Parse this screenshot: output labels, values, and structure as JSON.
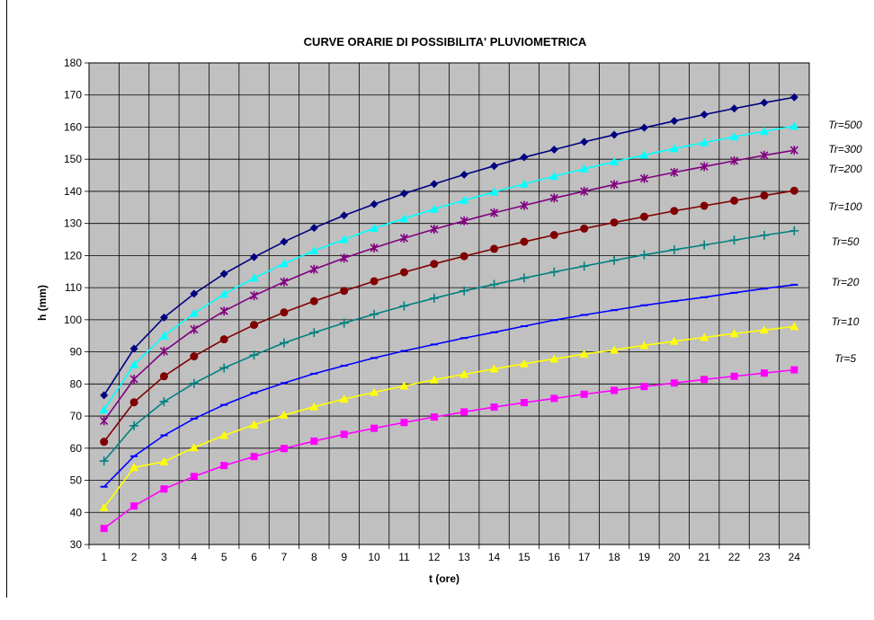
{
  "chart_data": {
    "type": "line",
    "title": "CURVE ORARIE DI POSSIBILITA' PLUVIOMETRICA",
    "xlabel": "t (ore)",
    "ylabel": "h (mm)",
    "ylim": [
      30,
      180
    ],
    "yticks": [
      "30",
      "40",
      "50",
      "60",
      "70",
      "80",
      "90",
      "100",
      "110",
      "120",
      "130",
      "140",
      "150",
      "160",
      "170",
      "180"
    ],
    "x": [
      "1",
      "2",
      "3",
      "4",
      "5",
      "6",
      "7",
      "8",
      "9",
      "10",
      "11",
      "12",
      "13",
      "14",
      "15",
      "16",
      "17",
      "18",
      "19",
      "20",
      "21",
      "22",
      "23",
      "24"
    ],
    "grid": true,
    "legend_position": "right",
    "plot_background": "#c0c0c0",
    "series": [
      {
        "name": "Tr=500",
        "color": "#000080",
        "marker": "diamond",
        "values": [
          76.5,
          91.0,
          100.7,
          108.1,
          114.3,
          119.5,
          124.3,
          128.6,
          132.5,
          136.0,
          139.3,
          142.3,
          145.2,
          147.9,
          150.6,
          153.0,
          155.4,
          157.6,
          159.8,
          161.9,
          163.9,
          165.8,
          167.6,
          169.3
        ]
      },
      {
        "name": "Tr=300",
        "color": "#00ffff",
        "marker": "triangle",
        "values": [
          72.0,
          86.0,
          95.0,
          102.0,
          108.0,
          113.0,
          117.5,
          121.5,
          125.0,
          128.5,
          131.5,
          134.5,
          137.2,
          139.8,
          142.3,
          144.7,
          147.0,
          149.2,
          151.3,
          153.3,
          155.2,
          157.0,
          158.7,
          160.3
        ]
      },
      {
        "name": "Tr=200",
        "color": "#800080",
        "marker": "star",
        "values": [
          68.5,
          81.5,
          90.2,
          97.0,
          102.7,
          107.5,
          111.8,
          115.7,
          119.2,
          122.4,
          125.4,
          128.2,
          130.8,
          133.3,
          135.6,
          137.9,
          140.0,
          142.1,
          144.0,
          145.9,
          147.7,
          149.5,
          151.2,
          152.8
        ]
      },
      {
        "name": "Tr=100",
        "color": "#800000",
        "marker": "circle",
        "values": [
          62.0,
          74.3,
          82.4,
          88.6,
          93.9,
          98.4,
          102.3,
          105.8,
          109.0,
          112.0,
          114.8,
          117.4,
          119.8,
          122.1,
          124.3,
          126.4,
          128.4,
          130.3,
          132.1,
          133.9,
          135.5,
          137.1,
          138.7,
          140.2
        ]
      },
      {
        "name": "Tr=50",
        "color": "#008080",
        "marker": "plus",
        "values": [
          56.0,
          67.0,
          74.5,
          80.2,
          85.0,
          89.0,
          92.8,
          96.0,
          99.0,
          101.7,
          104.3,
          106.7,
          109.0,
          111.0,
          113.0,
          114.9,
          116.7,
          118.5,
          120.2,
          121.8,
          123.3,
          124.8,
          126.3,
          127.7
        ]
      },
      {
        "name": "Tr=20",
        "color": "#0000ff",
        "marker": "dash",
        "values": [
          48.0,
          57.5,
          64.0,
          69.2,
          73.5,
          77.2,
          80.3,
          83.2,
          85.7,
          88.1,
          90.3,
          92.3,
          94.3,
          96.1,
          98.0,
          99.9,
          101.5,
          103.0,
          104.5,
          105.8,
          107.0,
          108.4,
          109.7,
          110.9
        ]
      },
      {
        "name": "Tr=10",
        "color": "#ffff00",
        "marker": "triangle",
        "values": [
          41.5,
          54.0,
          55.8,
          60.2,
          64.0,
          67.3,
          70.3,
          72.9,
          75.3,
          77.4,
          79.4,
          81.3,
          83.0,
          84.7,
          86.3,
          87.8,
          89.3,
          90.6,
          92.0,
          93.3,
          94.5,
          95.7,
          96.8,
          97.9
        ]
      },
      {
        "name": "Tr=5",
        "color": "#ff00ff",
        "marker": "square",
        "values": [
          35.0,
          42.0,
          47.3,
          51.2,
          54.6,
          57.4,
          59.9,
          62.2,
          64.3,
          66.2,
          68.0,
          69.7,
          71.3,
          72.8,
          74.2,
          75.5,
          76.8,
          78.0,
          79.2,
          80.3,
          81.4,
          82.4,
          83.4,
          84.4
        ]
      }
    ]
  }
}
